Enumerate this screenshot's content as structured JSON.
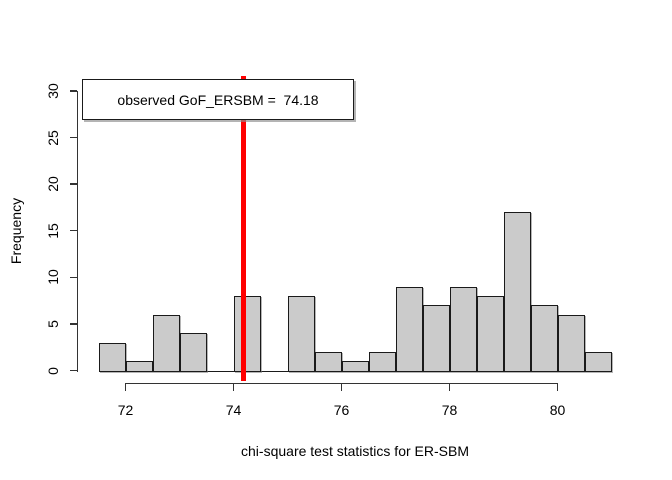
{
  "chart_data": {
    "type": "bar",
    "subtype": "histogram",
    "title": "",
    "xlabel": "chi-square test statistics for ER-SBM",
    "ylabel": "Frequency",
    "bins": {
      "start": 71.5,
      "width": 0.5
    },
    "counts": [
      3,
      1,
      6,
      4,
      0,
      8,
      0,
      8,
      2,
      1,
      2,
      9,
      7,
      9,
      8,
      17,
      7,
      6,
      2
    ],
    "xlim": [
      71.5,
      81
    ],
    "ylim": [
      0,
      30
    ],
    "x_ticks": [
      72,
      74,
      76,
      78,
      80
    ],
    "y_ticks": [
      0,
      5,
      10,
      15,
      20,
      25,
      30
    ],
    "grid": false,
    "legend_position": "topleft",
    "bar_fill": "#cbcbcb",
    "bar_border": "#1a1a1a",
    "observed_line": {
      "value": 74.18,
      "color": "#ff0000"
    }
  },
  "legend": {
    "text": "observed GoF_ERSBM =  74.18"
  }
}
